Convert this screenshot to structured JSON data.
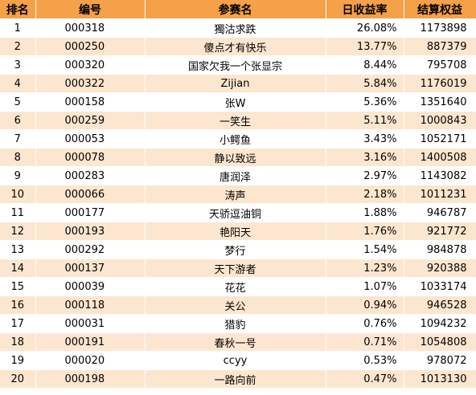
{
  "columns": {
    "rank": "排名",
    "id": "编号",
    "name": "参赛名",
    "rate": "日收益率",
    "equity": "结算权益"
  },
  "rows": [
    {
      "rank": "1",
      "id": "000318",
      "name": "獨沽求跌",
      "rate": "26.08%",
      "equity": "1173898"
    },
    {
      "rank": "2",
      "id": "000250",
      "name": "傻点才有快乐",
      "rate": "13.77%",
      "equity": "887379"
    },
    {
      "rank": "3",
      "id": "000320",
      "name": "国家欠我一个张显宗",
      "rate": "8.44%",
      "equity": "795708"
    },
    {
      "rank": "4",
      "id": "000322",
      "name": "Zijian",
      "rate": "5.84%",
      "equity": "1176019"
    },
    {
      "rank": "5",
      "id": "000158",
      "name": "张W",
      "rate": "5.36%",
      "equity": "1351640"
    },
    {
      "rank": "6",
      "id": "000259",
      "name": "一笑生",
      "rate": "5.11%",
      "equity": "1000843"
    },
    {
      "rank": "7",
      "id": "000053",
      "name": "小鳄鱼",
      "rate": "3.43%",
      "equity": "1052171"
    },
    {
      "rank": "8",
      "id": "000078",
      "name": "静以致远",
      "rate": "3.16%",
      "equity": "1400508"
    },
    {
      "rank": "9",
      "id": "000283",
      "name": "唐润泽",
      "rate": "2.97%",
      "equity": "1143082"
    },
    {
      "rank": "10",
      "id": "000066",
      "name": "涛声",
      "rate": "2.18%",
      "equity": "1011231"
    },
    {
      "rank": "11",
      "id": "000177",
      "name": "天骄逗油铜",
      "rate": "1.88%",
      "equity": "946787"
    },
    {
      "rank": "12",
      "id": "000193",
      "name": "艳阳天",
      "rate": "1.76%",
      "equity": "921772"
    },
    {
      "rank": "13",
      "id": "000292",
      "name": "梦行",
      "rate": "1.54%",
      "equity": "984878"
    },
    {
      "rank": "14",
      "id": "000137",
      "name": "天下游者",
      "rate": "1.23%",
      "equity": "920388"
    },
    {
      "rank": "15",
      "id": "000039",
      "name": "花花",
      "rate": "1.07%",
      "equity": "1033174"
    },
    {
      "rank": "16",
      "id": "000118",
      "name": "关公",
      "rate": "0.94%",
      "equity": "946528"
    },
    {
      "rank": "17",
      "id": "000031",
      "name": "猎豹",
      "rate": "0.76%",
      "equity": "1094232"
    },
    {
      "rank": "18",
      "id": "000191",
      "name": "春秋一号",
      "rate": "0.71%",
      "equity": "1054808"
    },
    {
      "rank": "19",
      "id": "000020",
      "name": "ccyy",
      "rate": "0.53%",
      "equity": "978072"
    },
    {
      "rank": "20",
      "id": "000198",
      "name": "一路向前",
      "rate": "0.47%",
      "equity": "1013130"
    }
  ],
  "colors": {
    "header_bg": "#f5a14a",
    "row_alt_bg": "#fde6cf",
    "row_bg": "#ffffff"
  }
}
